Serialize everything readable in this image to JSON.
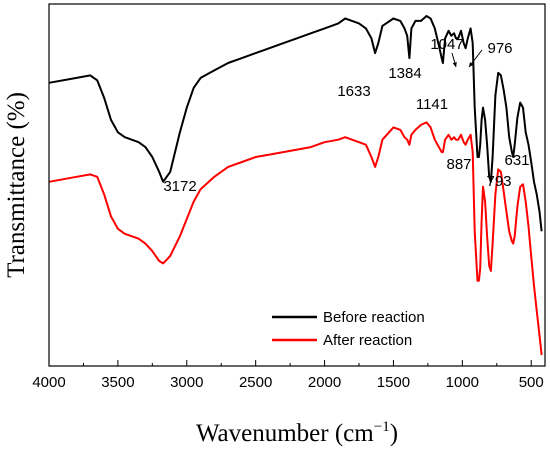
{
  "chart_data": {
    "type": "line",
    "xlabel": "Wavenumber (cm",
    "xlabel_sup": "−1",
    "xlabel_end": ")",
    "ylabel": "Transmittance (%)",
    "xlim": [
      4000,
      400
    ],
    "x_reversed": true,
    "x_ticks": [
      4000,
      3500,
      3000,
      2500,
      2000,
      1500,
      1000,
      500
    ],
    "y_ticks": [],
    "grid": false,
    "legend": {
      "placement": "bottom-right"
    },
    "annotations": [
      {
        "text": "3172",
        "x": 3172
      },
      {
        "text": "1633",
        "x": 1633
      },
      {
        "text": "1384",
        "x": 1384
      },
      {
        "text": "1047",
        "x": 1047,
        "arrow": true
      },
      {
        "text": "976",
        "x": 976,
        "arrow": true
      },
      {
        "text": "1141",
        "x": 1141
      },
      {
        "text": "887",
        "x": 887
      },
      {
        "text": "793",
        "x": 793
      },
      {
        "text": "631",
        "x": 631
      }
    ],
    "series": [
      {
        "name": "Before reaction",
        "color": "#000000",
        "points": [
          [
            4000,
            70
          ],
          [
            3800,
            72
          ],
          [
            3700,
            73
          ],
          [
            3650,
            71
          ],
          [
            3600,
            64
          ],
          [
            3550,
            55
          ],
          [
            3500,
            50
          ],
          [
            3450,
            48
          ],
          [
            3400,
            47
          ],
          [
            3350,
            46
          ],
          [
            3300,
            44
          ],
          [
            3250,
            40
          ],
          [
            3200,
            34
          ],
          [
            3172,
            30
          ],
          [
            3120,
            34
          ],
          [
            3050,
            50
          ],
          [
            3000,
            60
          ],
          [
            2950,
            68
          ],
          [
            2900,
            72
          ],
          [
            2800,
            75
          ],
          [
            2700,
            78
          ],
          [
            2600,
            80
          ],
          [
            2500,
            82
          ],
          [
            2400,
            84
          ],
          [
            2300,
            86
          ],
          [
            2200,
            88
          ],
          [
            2100,
            90
          ],
          [
            2000,
            92
          ],
          [
            1900,
            94
          ],
          [
            1850,
            96
          ],
          [
            1800,
            95
          ],
          [
            1750,
            94
          ],
          [
            1700,
            92
          ],
          [
            1660,
            88
          ],
          [
            1633,
            82
          ],
          [
            1610,
            86
          ],
          [
            1580,
            93
          ],
          [
            1500,
            96
          ],
          [
            1450,
            95
          ],
          [
            1420,
            92
          ],
          [
            1400,
            89
          ],
          [
            1384,
            80
          ],
          [
            1370,
            92
          ],
          [
            1340,
            95
          ],
          [
            1300,
            95
          ],
          [
            1260,
            97
          ],
          [
            1230,
            96
          ],
          [
            1200,
            92
          ],
          [
            1170,
            85
          ],
          [
            1150,
            80
          ],
          [
            1141,
            78
          ],
          [
            1125,
            88
          ],
          [
            1100,
            91
          ],
          [
            1080,
            89
          ],
          [
            1060,
            90
          ],
          [
            1047,
            88
          ],
          [
            1030,
            88
          ],
          [
            1010,
            91
          ],
          [
            990,
            86
          ],
          [
            976,
            84
          ],
          [
            960,
            88
          ],
          [
            940,
            92
          ],
          [
            925,
            86
          ],
          [
            910,
            60
          ],
          [
            890,
            40
          ],
          [
            880,
            40
          ],
          [
            870,
            45
          ],
          [
            860,
            55
          ],
          [
            850,
            60
          ],
          [
            835,
            55
          ],
          [
            820,
            45
          ],
          [
            805,
            32
          ],
          [
            793,
            30
          ],
          [
            780,
            40
          ],
          [
            760,
            65
          ],
          [
            740,
            74
          ],
          [
            720,
            73
          ],
          [
            700,
            67
          ],
          [
            680,
            60
          ],
          [
            660,
            48
          ],
          [
            640,
            42
          ],
          [
            631,
            40
          ],
          [
            620,
            45
          ],
          [
            600,
            56
          ],
          [
            580,
            62
          ],
          [
            560,
            60
          ],
          [
            540,
            50
          ],
          [
            520,
            45
          ],
          [
            500,
            38
          ],
          [
            480,
            30
          ],
          [
            460,
            25
          ],
          [
            440,
            18
          ],
          [
            425,
            10
          ]
        ]
      },
      {
        "name": "After reaction",
        "color": "#ff0000",
        "points": [
          [
            4000,
            30
          ],
          [
            3800,
            32
          ],
          [
            3700,
            33
          ],
          [
            3650,
            32
          ],
          [
            3600,
            25
          ],
          [
            3550,
            16
          ],
          [
            3500,
            11
          ],
          [
            3450,
            9
          ],
          [
            3400,
            8
          ],
          [
            3350,
            7
          ],
          [
            3300,
            5
          ],
          [
            3250,
            2
          ],
          [
            3200,
            -2
          ],
          [
            3172,
            -3
          ],
          [
            3120,
            0
          ],
          [
            3050,
            8
          ],
          [
            3000,
            15
          ],
          [
            2950,
            22
          ],
          [
            2900,
            27
          ],
          [
            2800,
            32
          ],
          [
            2700,
            36
          ],
          [
            2600,
            38
          ],
          [
            2500,
            40
          ],
          [
            2400,
            41
          ],
          [
            2300,
            42
          ],
          [
            2200,
            43
          ],
          [
            2100,
            44
          ],
          [
            2000,
            46
          ],
          [
            1900,
            47
          ],
          [
            1850,
            48
          ],
          [
            1800,
            47
          ],
          [
            1750,
            46
          ],
          [
            1700,
            45
          ],
          [
            1660,
            40
          ],
          [
            1633,
            36
          ],
          [
            1610,
            40
          ],
          [
            1580,
            47
          ],
          [
            1500,
            52
          ],
          [
            1450,
            51
          ],
          [
            1420,
            48
          ],
          [
            1400,
            47
          ],
          [
            1384,
            45
          ],
          [
            1370,
            49
          ],
          [
            1340,
            51
          ],
          [
            1300,
            53
          ],
          [
            1260,
            54
          ],
          [
            1230,
            52
          ],
          [
            1200,
            47
          ],
          [
            1170,
            44
          ],
          [
            1150,
            42
          ],
          [
            1141,
            42
          ],
          [
            1125,
            47
          ],
          [
            1100,
            49
          ],
          [
            1080,
            47
          ],
          [
            1060,
            48
          ],
          [
            1047,
            47
          ],
          [
            1030,
            47
          ],
          [
            1010,
            49
          ],
          [
            990,
            46
          ],
          [
            976,
            45
          ],
          [
            960,
            47
          ],
          [
            940,
            49
          ],
          [
            925,
            42
          ],
          [
            910,
            10
          ],
          [
            890,
            -10
          ],
          [
            880,
            -10
          ],
          [
            870,
            -5
          ],
          [
            860,
            14
          ],
          [
            850,
            28
          ],
          [
            835,
            22
          ],
          [
            820,
            8
          ],
          [
            805,
            -4
          ],
          [
            793,
            -6
          ],
          [
            780,
            5
          ],
          [
            760,
            25
          ],
          [
            740,
            35
          ],
          [
            720,
            34
          ],
          [
            700,
            26
          ],
          [
            680,
            18
          ],
          [
            660,
            10
          ],
          [
            640,
            6
          ],
          [
            631,
            5
          ],
          [
            620,
            8
          ],
          [
            600,
            20
          ],
          [
            580,
            28
          ],
          [
            560,
            29
          ],
          [
            540,
            22
          ],
          [
            520,
            12
          ],
          [
            500,
            0
          ],
          [
            480,
            -12
          ],
          [
            460,
            -22
          ],
          [
            440,
            -32
          ],
          [
            425,
            -40
          ]
        ]
      }
    ]
  }
}
